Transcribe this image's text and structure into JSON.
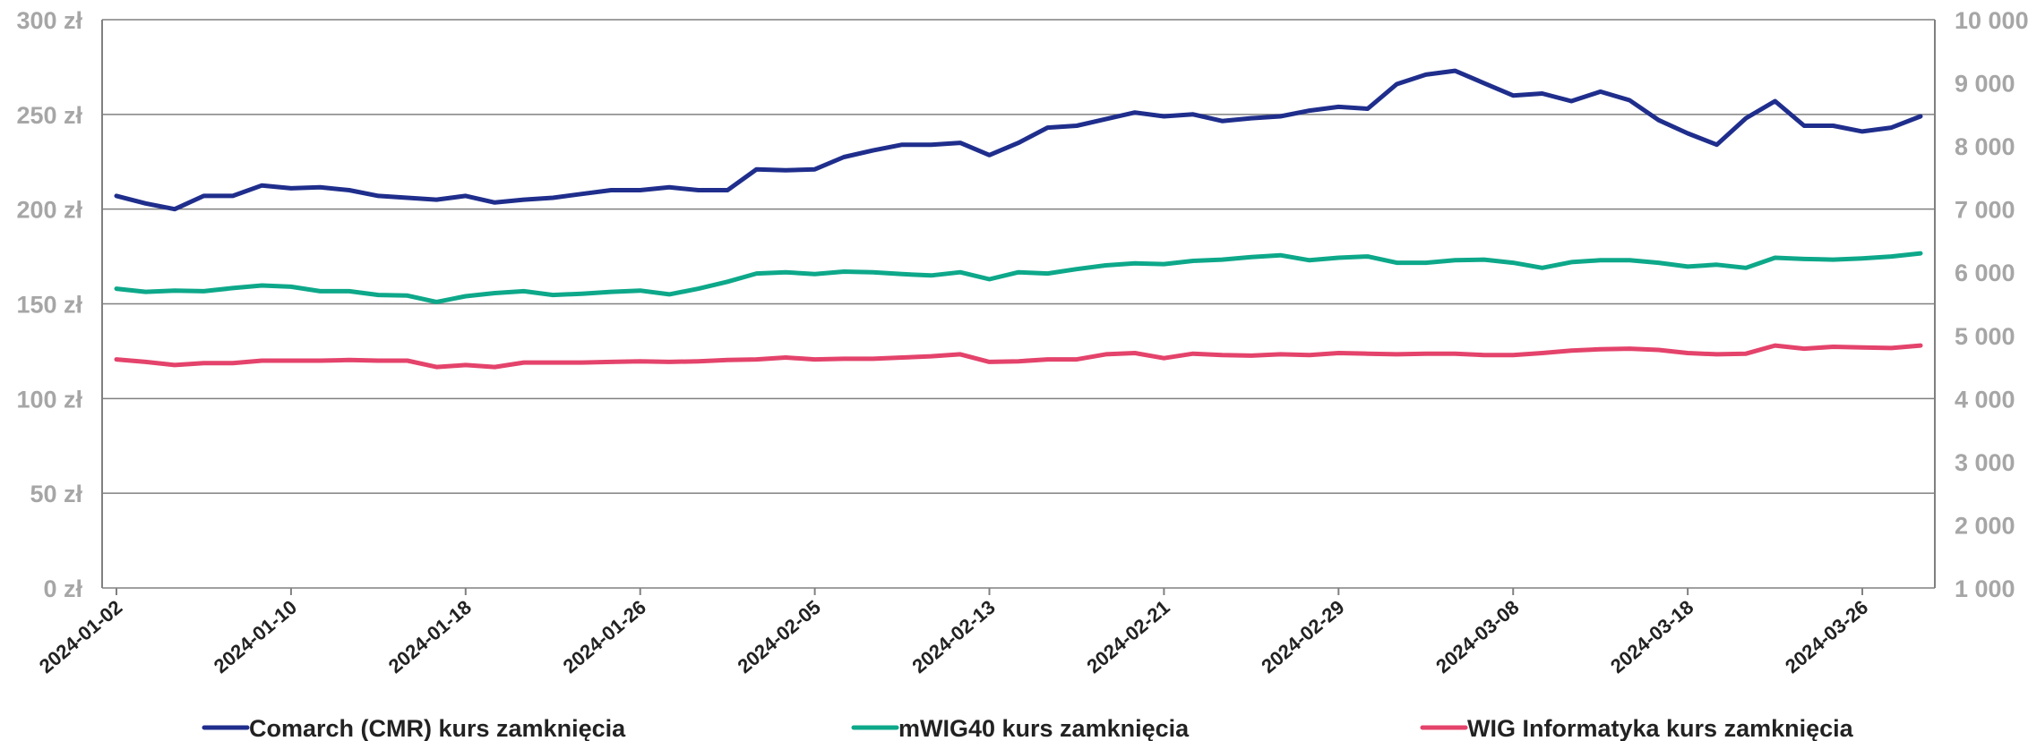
{
  "chart_data": {
    "type": "line",
    "title": "",
    "xlabel": "",
    "ylabel": "",
    "y_left": {
      "lim": [
        0,
        300
      ],
      "ticks": [
        0,
        50,
        100,
        150,
        200,
        250,
        300
      ],
      "tick_labels": [
        "0 zł",
        "50 zł",
        "100 zł",
        "150 zł",
        "200 zł",
        "250 zł",
        "300 zł"
      ]
    },
    "y_right": {
      "lim": [
        1000,
        10000
      ],
      "ticks": [
        1000,
        2000,
        3000,
        4000,
        5000,
        6000,
        7000,
        8000,
        9000,
        10000
      ],
      "tick_labels": [
        "1 000",
        "2 000",
        "3 000",
        "4 000",
        "5 000",
        "6 000",
        "7 000",
        "8 000",
        "9 000",
        "10 000"
      ]
    },
    "x_tick_labels": [
      "2024-01-02",
      "2024-01-10",
      "2024-01-18",
      "2024-01-26",
      "2024-02-05",
      "2024-02-13",
      "2024-02-21",
      "2024-02-29",
      "2024-03-08",
      "2024-03-18",
      "2024-03-26"
    ],
    "x": [
      "2024-01-02",
      "2024-01-03",
      "2024-01-04",
      "2024-01-05",
      "2024-01-08",
      "2024-01-09",
      "2024-01-10",
      "2024-01-11",
      "2024-01-12",
      "2024-01-15",
      "2024-01-16",
      "2024-01-17",
      "2024-01-18",
      "2024-01-19",
      "2024-01-22",
      "2024-01-23",
      "2024-01-24",
      "2024-01-25",
      "2024-01-26",
      "2024-01-29",
      "2024-01-30",
      "2024-01-31",
      "2024-02-01",
      "2024-02-02",
      "2024-02-05",
      "2024-02-06",
      "2024-02-07",
      "2024-02-08",
      "2024-02-09",
      "2024-02-12",
      "2024-02-13",
      "2024-02-14",
      "2024-02-15",
      "2024-02-16",
      "2024-02-19",
      "2024-02-20",
      "2024-02-21",
      "2024-02-22",
      "2024-02-23",
      "2024-02-26",
      "2024-02-27",
      "2024-02-28",
      "2024-02-29",
      "2024-03-01",
      "2024-03-04",
      "2024-03-05",
      "2024-03-06",
      "2024-03-07",
      "2024-03-08",
      "2024-03-11",
      "2024-03-12",
      "2024-03-13",
      "2024-03-14",
      "2024-03-15",
      "2024-03-18",
      "2024-03-19",
      "2024-03-20",
      "2024-03-21",
      "2024-03-22",
      "2024-03-25",
      "2024-03-26",
      "2024-03-27",
      "2024-03-28"
    ],
    "series": [
      {
        "name": "Comarch (CMR) kurs zamknięcia",
        "axis": "left",
        "color": "#1f2e8c",
        "values": [
          207,
          203,
          200,
          207,
          207,
          212.5,
          211,
          211.5,
          210,
          207,
          206,
          205,
          207,
          203.5,
          205,
          206,
          208,
          210,
          210,
          211.5,
          210,
          210,
          221,
          220.5,
          221,
          227.5,
          231,
          234,
          234,
          235,
          228.5,
          235,
          243,
          244,
          247.5,
          251,
          249,
          250,
          246.5,
          248,
          249,
          252,
          254,
          253,
          266,
          271,
          273,
          266.5,
          260,
          261,
          257,
          262,
          257.5,
          247,
          240,
          234,
          248,
          257,
          244,
          244,
          241,
          243,
          249
        ]
      },
      {
        "name": "mWIG40 kurs zamknięcia",
        "axis": "right",
        "color": "#0da88a",
        "values": [
          5740,
          5690,
          5710,
          5700,
          5750,
          5790,
          5770,
          5700,
          5700,
          5640,
          5630,
          5530,
          5620,
          5670,
          5700,
          5640,
          5660,
          5690,
          5710,
          5650,
          5740,
          5850,
          5980,
          6000,
          5970,
          6010,
          6000,
          5970,
          5950,
          6000,
          5890,
          6000,
          5980,
          6050,
          6110,
          6140,
          6130,
          6180,
          6200,
          6240,
          6270,
          6190,
          6230,
          6250,
          6150,
          6150,
          6190,
          6200,
          6150,
          6070,
          6160,
          6190,
          6190,
          6150,
          6090,
          6120,
          6070,
          6230,
          6210,
          6200,
          6220,
          6250,
          6300
        ]
      },
      {
        "name": "WIG Informatyka kurs zamknięcia",
        "axis": "right",
        "color": "#e4436b",
        "values": [
          4620,
          4580,
          4530,
          4560,
          4560,
          4600,
          4600,
          4600,
          4610,
          4600,
          4600,
          4500,
          4530,
          4500,
          4570,
          4570,
          4570,
          4580,
          4590,
          4580,
          4590,
          4610,
          4620,
          4650,
          4620,
          4630,
          4630,
          4650,
          4670,
          4700,
          4580,
          4590,
          4620,
          4620,
          4700,
          4720,
          4640,
          4710,
          4690,
          4680,
          4700,
          4690,
          4720,
          4710,
          4700,
          4710,
          4710,
          4690,
          4690,
          4720,
          4760,
          4780,
          4790,
          4770,
          4720,
          4700,
          4710,
          4840,
          4790,
          4820,
          4810,
          4800,
          4840
        ]
      }
    ],
    "grid": true,
    "legend_position": "bottom"
  }
}
